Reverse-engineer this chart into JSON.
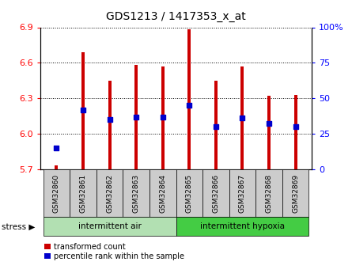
{
  "title": "GDS1213 / 1417353_x_at",
  "samples": [
    "GSM32860",
    "GSM32861",
    "GSM32862",
    "GSM32863",
    "GSM32864",
    "GSM32865",
    "GSM32866",
    "GSM32867",
    "GSM32868",
    "GSM32869"
  ],
  "transformed_count": [
    5.73,
    6.69,
    6.45,
    6.58,
    6.57,
    6.88,
    6.45,
    6.57,
    6.32,
    6.33
  ],
  "percentile_rank": [
    15,
    42,
    35,
    37,
    37,
    45,
    30,
    36,
    32,
    30
  ],
  "bar_color": "#cc0000",
  "dot_color": "#0000cc",
  "ylim_left": [
    5.7,
    6.9
  ],
  "ylim_right": [
    0,
    100
  ],
  "yticks_left": [
    5.7,
    6.0,
    6.3,
    6.6,
    6.9
  ],
  "yticks_right": [
    0,
    25,
    50,
    75,
    100
  ],
  "ytick_labels_right": [
    "0",
    "25",
    "50",
    "75",
    "100%"
  ],
  "groups": [
    {
      "label": "intermittent air",
      "indices": [
        0,
        1,
        2,
        3,
        4
      ],
      "color": "#b2e0b2"
    },
    {
      "label": "intermittent hypoxia",
      "indices": [
        5,
        6,
        7,
        8,
        9
      ],
      "color": "#44cc44"
    }
  ],
  "stress_label": "stress",
  "legend_items": [
    {
      "label": "transformed count",
      "color": "#cc0000"
    },
    {
      "label": "percentile rank within the sample",
      "color": "#0000cc"
    }
  ],
  "bar_bottom": 5.7,
  "bar_width": 0.12,
  "label_box_color": "#cccccc",
  "fig_bg": "#ffffff"
}
